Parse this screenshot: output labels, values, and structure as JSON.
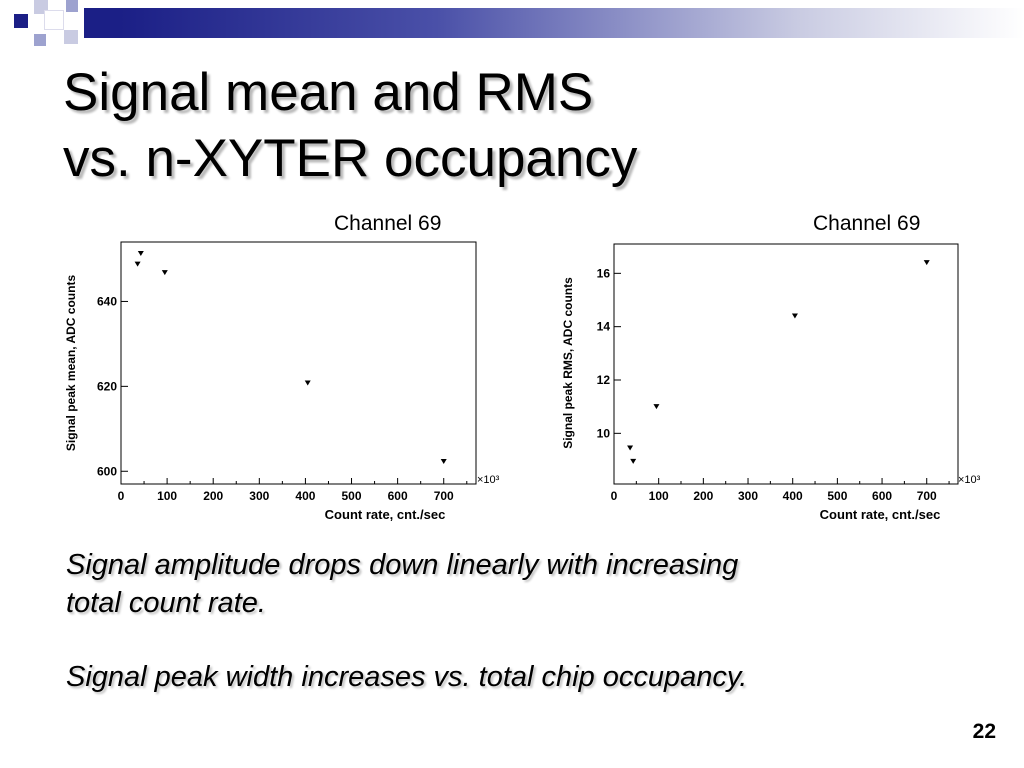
{
  "slide": {
    "title_line1": "Signal mean and RMS",
    "title_line2": "vs. n-XYTER occupancy",
    "paragraph1_line1": "Signal amplitude drops down linearly with increasing",
    "paragraph1_line2": "total count rate.",
    "paragraph2": "Signal peak width increases vs. total chip occupancy.",
    "page_number": "22",
    "accent_color": "#1b1f86"
  },
  "chart_data": [
    {
      "type": "scatter",
      "title": "Channel 69",
      "xlabel": "Count rate, cnt./sec",
      "ylabel": "Signal peak mean, ADC counts",
      "x_multiplier_label": "×10³",
      "xlim": [
        0,
        770
      ],
      "ylim": [
        597,
        654
      ],
      "xticks": [
        0,
        100,
        200,
        300,
        400,
        500,
        600,
        700
      ],
      "yticks": [
        600,
        620,
        640
      ],
      "points": [
        {
          "x": 36,
          "y": 648.8
        },
        {
          "x": 43,
          "y": 651.3
        },
        {
          "x": 95,
          "y": 646.8
        },
        {
          "x": 405,
          "y": 620.8
        },
        {
          "x": 700,
          "y": 602.3
        }
      ],
      "marker": "triangle-down",
      "grid": false
    },
    {
      "type": "scatter",
      "title": "Channel 69",
      "xlabel": "Count rate, cnt./sec",
      "ylabel": "Signal peak RMS, ADC counts",
      "x_multiplier_label": "×10³",
      "xlim": [
        0,
        770
      ],
      "ylim": [
        8.1,
        17.1
      ],
      "xticks": [
        0,
        100,
        200,
        300,
        400,
        500,
        600,
        700
      ],
      "yticks": [
        10,
        12,
        14,
        16
      ],
      "points": [
        {
          "x": 36,
          "y": 9.45
        },
        {
          "x": 43,
          "y": 8.95
        },
        {
          "x": 95,
          "y": 11.0
        },
        {
          "x": 405,
          "y": 14.4
        },
        {
          "x": 700,
          "y": 16.4
        }
      ],
      "marker": "triangle-down",
      "grid": false
    }
  ]
}
